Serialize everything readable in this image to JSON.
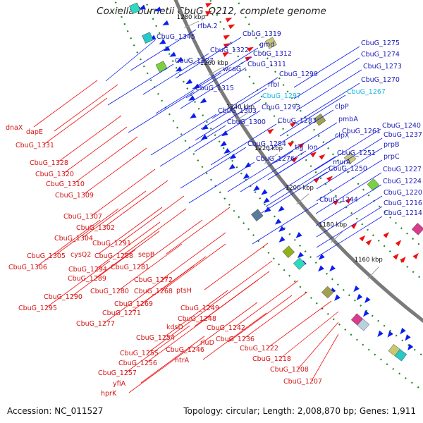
{
  "title": "Coxiella burnetii CbuG_Q212, complete genome",
  "footer": {
    "accession": "Accession: NC_011527",
    "summary": "Topology: circular; Length: 2,008,870 bp; Genes: 1,911"
  },
  "colors": {
    "backbone": "#7a7a7a",
    "forward_gene": "#0a1ef0",
    "reverse_gene": "#f01010",
    "forward_label": "#1a1ab8",
    "reverse_label": "#d21414",
    "highlight_label": "#20b8e0",
    "grid_dots": "#1c8a1c"
  },
  "scale_labels": [
    "1320 kbp",
    "1300 kbp",
    "1280 kbp",
    "1260 kbp",
    "1240 kbp",
    "1220 kbp",
    "1200 kbp",
    "1180 kbp",
    "1160 kbp"
  ],
  "forward_labels": [
    "rfbA.2",
    "CbuG_1345",
    "CbuG_1319",
    "gmd",
    "CbuG_1322",
    "CbuG_1312",
    "CbuG_1327",
    "wcaG",
    "CbuG_1311",
    "CbuG_1299",
    "rfbI",
    "CbuG_1315",
    "CbuG_1297",
    "CbuG_1293",
    "CbuG_1303",
    "CbuG_1300",
    "CbuG_1283",
    "CbuG_1284",
    "CbuG_1276",
    "tig",
    "lon",
    "clpP",
    "clpX",
    "pmbA",
    "CbuG_1261",
    "murA",
    "CbuG_1251",
    "CbuG_1250",
    "CbuG_1244",
    "CbuG_1275",
    "CbuG_1274",
    "CbuG_1273",
    "CbuG_1270",
    "CbuG_1267",
    "CbuG_1240",
    "CbuG_1237",
    "prpB",
    "prpC",
    "CbuG_1227",
    "CbuG_1224",
    "CbuG_1220",
    "CbuG_1216",
    "CbuG_1214"
  ],
  "reverse_labels": [
    "dnaX",
    "dapE",
    "CbuG_1331",
    "CbuG_1328",
    "CbuG_1320",
    "CbuG_1310",
    "CbuG_1309",
    "CbuG_1307",
    "CbuG_1302",
    "CbuG_1304",
    "CbuG_1291",
    "cysQ2",
    "CbuG_1288",
    "sepB",
    "CbuG_1305",
    "CbuG_1306",
    "CbuG_1294",
    "CbuG_1281",
    "CbuG_1289",
    "CbuG_1272",
    "CbuG_1290",
    "CbuG_1280",
    "CbuG_1268",
    "ptsH",
    "CbuG_1295",
    "CbuG_1269",
    "CbuG_1271",
    "CbuG_1277",
    "CbuG_1249",
    "CbuG_1248",
    "kdsD",
    "CbuG_1242",
    "CbuG_1254",
    "rluD",
    "CbuG_1236",
    "CbuG_1246",
    "CbuG_1255",
    "htrA",
    "CbuG_1256",
    "CbuG_1257",
    "yfiA",
    "hprK",
    "CbuG_1222",
    "CbuG_1218",
    "CbuG_1208",
    "CbuG_1207"
  ]
}
